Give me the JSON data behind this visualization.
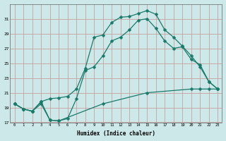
{
  "xlabel": "Humidex (Indice chaleur)",
  "bg_color": "#cce8e8",
  "grid_color": "#c8a0a0",
  "line_color": "#1a7a6a",
  "line1_x": [
    0,
    1,
    2,
    3,
    4,
    5,
    6,
    7,
    8,
    9,
    10,
    11,
    12,
    13,
    14,
    15,
    16,
    17,
    18,
    19,
    20,
    21,
    22,
    23
  ],
  "line1_y": [
    19.5,
    18.8,
    18.5,
    19.8,
    20.2,
    20.3,
    20.5,
    21.5,
    24.3,
    28.5,
    28.8,
    30.5,
    31.2,
    31.3,
    31.7,
    32.1,
    31.6,
    29.5,
    28.5,
    27.3,
    26.0,
    24.5,
    22.5,
    21.5
  ],
  "line2_x": [
    0,
    1,
    2,
    3,
    4,
    5,
    6,
    7,
    8,
    9,
    10,
    11,
    12,
    13,
    14,
    15,
    16,
    17,
    18,
    19,
    20,
    21,
    22,
    23
  ],
  "line2_y": [
    19.5,
    18.8,
    18.5,
    19.8,
    17.3,
    17.2,
    17.5,
    20.2,
    24.0,
    24.5,
    26.0,
    28.0,
    28.5,
    29.5,
    30.8,
    31.0,
    29.7,
    28.0,
    27.0,
    27.2,
    25.5,
    24.8,
    22.5,
    21.5
  ],
  "line3_x": [
    0,
    1,
    2,
    3,
    4,
    5,
    10,
    15,
    20,
    21,
    22,
    23
  ],
  "line3_y": [
    19.5,
    18.8,
    18.5,
    19.5,
    17.3,
    17.2,
    19.5,
    21.0,
    21.5,
    21.5,
    21.5,
    21.5
  ],
  "ylim": [
    17,
    33
  ],
  "xlim": [
    -0.5,
    23.5
  ],
  "yticks": [
    17,
    19,
    21,
    23,
    25,
    27,
    29,
    31
  ],
  "xticks": [
    0,
    1,
    2,
    3,
    4,
    5,
    6,
    7,
    8,
    9,
    10,
    11,
    12,
    13,
    14,
    15,
    16,
    17,
    18,
    19,
    20,
    21,
    22,
    23
  ]
}
